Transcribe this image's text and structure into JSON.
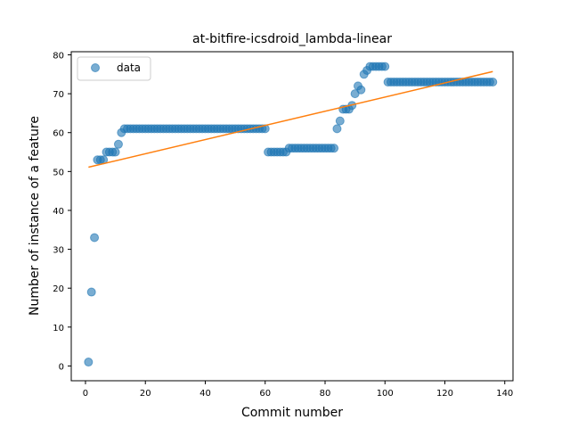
{
  "chart_data": {
    "type": "scatter",
    "title": "at-bitfire-icsdroid_lambda-linear",
    "xlabel": "Commit number",
    "ylabel": "Number of instance of a feature",
    "xlim": [
      -4.75,
      142.75
    ],
    "ylim": [
      -3.8,
      80.8
    ],
    "xticks": [
      0,
      20,
      40,
      60,
      80,
      100,
      120,
      140
    ],
    "yticks": [
      0,
      10,
      20,
      30,
      40,
      50,
      60,
      70,
      80
    ],
    "grid": false,
    "legend_position": "top-left",
    "series": [
      {
        "name": "data",
        "kind": "scatter",
        "color": "#1f77b4",
        "x": [
          1,
          2,
          3,
          4,
          5,
          6,
          7,
          8,
          9,
          10,
          11,
          12,
          13,
          14,
          15,
          16,
          17,
          18,
          19,
          20,
          21,
          22,
          23,
          24,
          25,
          26,
          27,
          28,
          29,
          30,
          31,
          32,
          33,
          34,
          35,
          36,
          37,
          38,
          39,
          40,
          41,
          42,
          43,
          44,
          45,
          46,
          47,
          48,
          49,
          50,
          51,
          52,
          53,
          54,
          55,
          56,
          57,
          58,
          59,
          60,
          61,
          62,
          63,
          64,
          65,
          66,
          67,
          68,
          69,
          70,
          71,
          72,
          73,
          74,
          75,
          76,
          77,
          78,
          79,
          80,
          81,
          82,
          83,
          84,
          85,
          86,
          87,
          88,
          89,
          90,
          91,
          92,
          93,
          94,
          95,
          96,
          97,
          98,
          99,
          100,
          101,
          102,
          103,
          104,
          105,
          106,
          107,
          108,
          109,
          110,
          111,
          112,
          113,
          114,
          115,
          116,
          117,
          118,
          119,
          120,
          121,
          122,
          123,
          124,
          125,
          126,
          127,
          128,
          129,
          130,
          131,
          132,
          133,
          134,
          135,
          136
        ],
        "y": [
          1,
          19,
          33,
          53,
          53,
          53,
          55,
          55,
          55,
          55,
          57,
          60,
          61,
          61,
          61,
          61,
          61,
          61,
          61,
          61,
          61,
          61,
          61,
          61,
          61,
          61,
          61,
          61,
          61,
          61,
          61,
          61,
          61,
          61,
          61,
          61,
          61,
          61,
          61,
          61,
          61,
          61,
          61,
          61,
          61,
          61,
          61,
          61,
          61,
          61,
          61,
          61,
          61,
          61,
          61,
          61,
          61,
          61,
          61,
          61,
          55,
          55,
          55,
          55,
          55,
          55,
          55,
          56,
          56,
          56,
          56,
          56,
          56,
          56,
          56,
          56,
          56,
          56,
          56,
          56,
          56,
          56,
          56,
          61,
          63,
          66,
          66,
          66,
          67,
          70,
          72,
          71,
          75,
          76,
          77,
          77,
          77,
          77,
          77,
          77,
          73,
          73,
          73,
          73,
          73,
          73,
          73,
          73,
          73,
          73,
          73,
          73,
          73,
          73,
          73,
          73,
          73,
          73,
          73,
          73,
          73,
          73,
          73,
          73,
          73,
          73,
          73,
          73,
          73,
          73,
          73,
          73,
          73,
          73,
          73,
          73
        ]
      },
      {
        "name": "",
        "kind": "line",
        "color": "#ff7f0e",
        "x": [
          1,
          136
        ],
        "y": [
          51.1,
          75.7
        ]
      }
    ]
  }
}
